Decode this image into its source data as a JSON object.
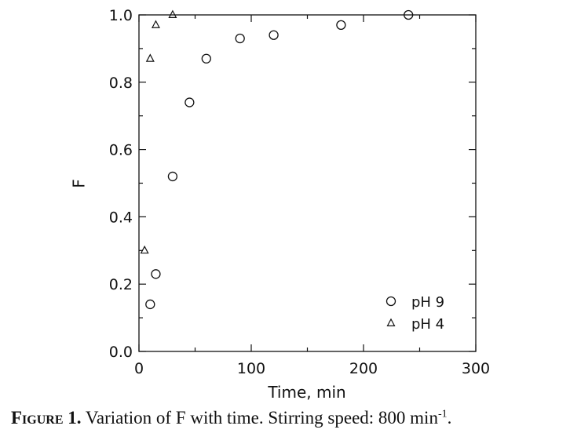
{
  "chart_data": {
    "type": "scatter",
    "xlabel": "Time, min",
    "ylabel": "F",
    "xlim": [
      0,
      300
    ],
    "ylim": [
      0.0,
      1.0
    ],
    "x_ticks": [
      0,
      100,
      200,
      300
    ],
    "x_tick_labels": [
      "0",
      "100",
      "200",
      "300"
    ],
    "y_ticks": [
      0.0,
      0.2,
      0.4,
      0.6,
      0.8,
      1.0
    ],
    "y_tick_labels": [
      "0.0",
      "0.2",
      "0.4",
      "0.6",
      "0.8",
      "1.0"
    ],
    "grid": false,
    "legend": "bottom-right",
    "series": [
      {
        "name": "pH 9",
        "marker": "circle",
        "x": [
          10,
          15,
          30,
          45,
          60,
          90,
          120,
          180,
          240
        ],
        "y": [
          0.14,
          0.23,
          0.52,
          0.74,
          0.87,
          0.93,
          0.94,
          0.97,
          1.0
        ]
      },
      {
        "name": "pH 4",
        "marker": "triangle",
        "x": [
          5,
          10,
          15,
          30
        ],
        "y": [
          0.3,
          0.87,
          0.97,
          1.0
        ]
      }
    ]
  },
  "caption": {
    "label": "Figure 1.",
    "text": " Variation of F with time. Stirring speed: 800 min",
    "superscript": "-1",
    "end": "."
  }
}
